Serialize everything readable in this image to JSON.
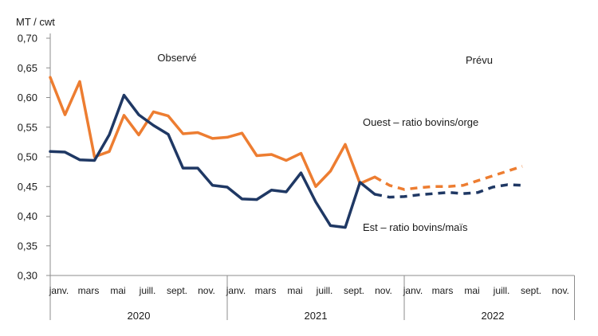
{
  "chart_data": {
    "type": "line",
    "ylabel": "MT / cwt",
    "ylim": [
      0.3,
      0.7
    ],
    "yticks": [
      "0,70",
      "0,65",
      "0,60",
      "0,55",
      "0,50",
      "0,45",
      "0,40",
      "0,35",
      "0,30"
    ],
    "ytick_values": [
      0.7,
      0.65,
      0.6,
      0.55,
      0.5,
      0.45,
      0.4,
      0.35,
      0.3
    ],
    "month_labels": [
      "janv.",
      "mars",
      "mai",
      "juill.",
      "sept.",
      "nov.",
      "janv.",
      "mars",
      "mai",
      "juill.",
      "sept.",
      "nov.",
      "janv.",
      "mars",
      "mai",
      "juill.",
      "sept.",
      "nov."
    ],
    "month_label_index": [
      0,
      2,
      4,
      6,
      8,
      10,
      12,
      14,
      16,
      18,
      20,
      22,
      24,
      26,
      28,
      30,
      32,
      34
    ],
    "years": [
      {
        "label": "2020",
        "start": 0,
        "end": 11
      },
      {
        "label": "2021",
        "start": 12,
        "end": 23
      },
      {
        "label": "2022",
        "start": 24,
        "end": 35
      }
    ],
    "annotations": {
      "observed": "Observé",
      "forecast": "Prévu"
    },
    "series": [
      {
        "name": "Ouest – ratio bovins/orge",
        "color": "#ED7D31",
        "observed": [
          0.634,
          0.571,
          0.627,
          0.5,
          0.509,
          0.57,
          0.537,
          0.576,
          0.569,
          0.539,
          0.541,
          0.531,
          0.533,
          0.54,
          0.502,
          0.504,
          0.494,
          0.506,
          0.45,
          0.476,
          0.521,
          0.455,
          0.466
        ],
        "forecast_start": 22,
        "forecast": [
          0.466,
          0.452,
          0.445,
          0.448,
          0.45,
          0.45,
          0.452,
          0.46,
          0.468,
          0.476,
          0.484
        ]
      },
      {
        "name": "Est – ratio bovins/maïs",
        "color": "#1F3864",
        "observed": [
          0.509,
          0.508,
          0.495,
          0.494,
          0.537,
          0.604,
          0.571,
          0.553,
          0.538,
          0.481,
          0.481,
          0.452,
          0.449,
          0.429,
          0.428,
          0.444,
          0.441,
          0.473,
          0.424,
          0.384,
          0.381,
          0.457,
          0.437
        ],
        "forecast_start": 22,
        "forecast": [
          0.437,
          0.432,
          0.433,
          0.436,
          0.438,
          0.44,
          0.438,
          0.44,
          0.449,
          0.453,
          0.452
        ]
      }
    ]
  }
}
